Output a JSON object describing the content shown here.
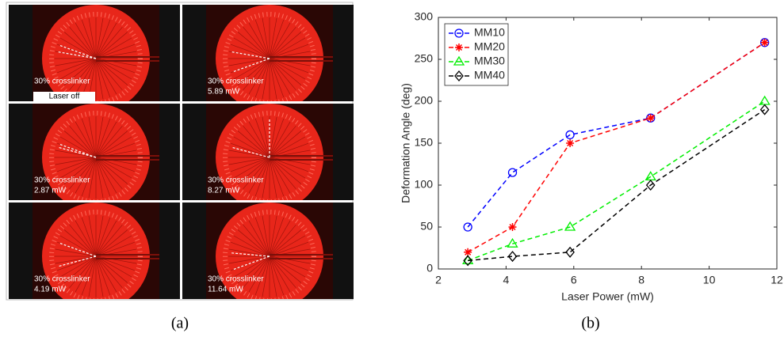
{
  "photos": [
    {
      "lines": [
        "30% crosslinker",
        "Laser off"
      ]
    },
    {
      "lines": [
        "30% crosslinker",
        "5.89 mW"
      ]
    },
    {
      "lines": [
        "30% crosslinker",
        "2.87 mW"
      ]
    },
    {
      "lines": [
        "30% crosslinker",
        "8.27 mW"
      ]
    },
    {
      "lines": [
        "30% crosslinker",
        "4.19 mW"
      ]
    },
    {
      "lines": [
        "30% crosslinker",
        "11.64 mW"
      ]
    }
  ],
  "captions": [
    "(a)",
    "(b)"
  ],
  "chart_data": {
    "type": "line",
    "x_label": "Laser Power (mW)",
    "y_label": "Deformation Angle (deg)",
    "x": [
      2.87,
      4.19,
      5.89,
      8.27,
      11.64
    ],
    "series": [
      {
        "name": "MM10",
        "color": "#0000ff",
        "marker": "circle",
        "values": [
          50,
          115,
          160,
          180,
          270
        ]
      },
      {
        "name": "MM20",
        "color": "#ff0000",
        "marker": "asterisk",
        "values": [
          20,
          50,
          150,
          180,
          270
        ]
      },
      {
        "name": "MM30",
        "color": "#00ee00",
        "marker": "triangle",
        "values": [
          10,
          30,
          50,
          110,
          200
        ]
      },
      {
        "name": "MM40",
        "color": "#000000",
        "marker": "diamond",
        "values": [
          10,
          15,
          20,
          100,
          190
        ]
      }
    ],
    "xlim": [
      2,
      12
    ],
    "xticks": [
      2,
      4,
      6,
      8,
      10,
      12
    ],
    "ylim": [
      0,
      300
    ],
    "yticks": [
      0,
      50,
      100,
      150,
      200,
      250,
      300
    ],
    "legend": "upper-left",
    "line_style": "dashed"
  }
}
